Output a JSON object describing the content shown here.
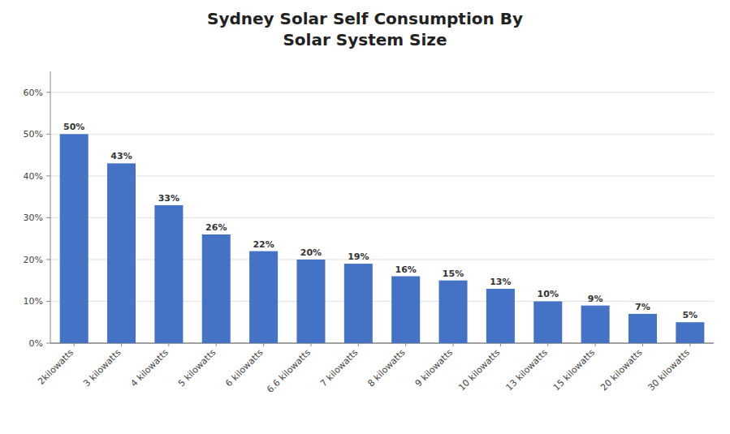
{
  "chart_data": {
    "type": "bar",
    "title": "Sydney Solar Self Consumption By\nSolar System Size",
    "categories": [
      "2kilowatts",
      "3 kilowatts",
      "4 kilowatts",
      "5 kilowatts",
      "6 kilowatts",
      "6.6 kilowatts",
      "7 kilowatts",
      "8 kilowatts",
      "9 kilowatts",
      "10 kilowatts",
      "13 kilowatts",
      "15 kilowatts",
      "20 kilowatts",
      "30 kilowatts"
    ],
    "values": [
      50,
      43,
      33,
      26,
      22,
      20,
      19,
      16,
      15,
      13,
      10,
      9,
      7,
      5
    ],
    "value_labels": [
      "50%",
      "43%",
      "33%",
      "26%",
      "22%",
      "20%",
      "19%",
      "16%",
      "15%",
      "13%",
      "10%",
      "9%",
      "7%",
      "5%"
    ],
    "data_labels": true,
    "color": "#4472C4",
    "ylim": [
      0,
      65
    ],
    "yticks": [
      {
        "value": 0,
        "label": "0%"
      },
      {
        "value": 10,
        "label": "10%"
      },
      {
        "value": 20,
        "label": "20%"
      },
      {
        "value": 30,
        "label": "30%"
      },
      {
        "value": 40,
        "label": "40%"
      },
      {
        "value": 50,
        "label": "50%"
      },
      {
        "value": 60,
        "label": "60%"
      }
    ],
    "grid": true
  }
}
